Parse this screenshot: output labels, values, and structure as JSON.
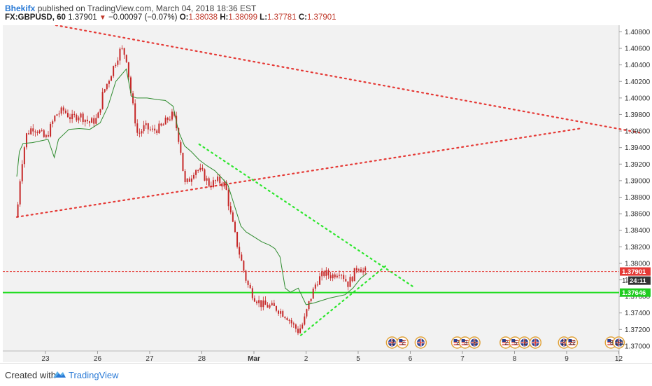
{
  "header": {
    "author": "Bhekifx",
    "published_text": " published on TradingView.com, March 04, 2018 18:36 EST",
    "symbol": "FX:GBPUSD, 60",
    "last": "1.37901",
    "change_arrow": "▼",
    "change": "−0.00097 (−0.07%)",
    "o_label": "O:",
    "o_value": "1.38038",
    "h_label": "H:",
    "h_value": "1.38099",
    "l_label": "L:",
    "l_value": "1.37781",
    "c_label": "C:",
    "c_value": "1.37901"
  },
  "footer": {
    "created_with": "Created with",
    "brand": "TradingView"
  },
  "price_tags": {
    "last_price": "1.37901",
    "countdown": "24:11",
    "support_level": "1.37646",
    "hidden_level_label": "1."
  },
  "colors": {
    "background": "#f2f2f2",
    "candle": "#c62828",
    "moving_average": "#2e8b2e",
    "red_trendline": "#e53935",
    "green_trendline": "#2ee62e",
    "support_line": "#22dd22",
    "price_tag_red": "#e53935",
    "price_tag_dark": "#333333",
    "price_tag_green": "#1fcc1f"
  },
  "chart_data": {
    "type": "candlestick",
    "symbol": "FX:GBPUSD",
    "interval": "60",
    "x_ticks": [
      "23",
      "26",
      "27",
      "28",
      "Mar",
      "2",
      "5",
      "6",
      "7",
      "8",
      "9",
      "12"
    ],
    "y_ticks": [
      "1.40800",
      "1.40600",
      "1.40400",
      "1.40200",
      "1.40000",
      "1.39800",
      "1.39600",
      "1.39400",
      "1.39200",
      "1.39000",
      "1.38800",
      "1.38600",
      "1.38400",
      "1.38200",
      "1.38000",
      "1.37800",
      "1.37600",
      "1.37400",
      "1.37200",
      "1.37000"
    ],
    "ylim": [
      1.3694,
      1.4088
    ],
    "xlim_trading_days": [
      0,
      12.2
    ],
    "close_path": [
      [
        0.0,
        1.3856
      ],
      [
        0.08,
        1.3915
      ],
      [
        0.18,
        1.3955
      ],
      [
        0.3,
        1.3965
      ],
      [
        0.42,
        1.396
      ],
      [
        0.55,
        1.395
      ],
      [
        0.65,
        1.3965
      ],
      [
        0.75,
        1.398
      ],
      [
        0.9,
        1.3985
      ],
      [
        1.05,
        1.3975
      ],
      [
        1.2,
        1.398
      ],
      [
        1.4,
        1.397
      ],
      [
        1.55,
        1.3975
      ],
      [
        1.65,
        1.4005
      ],
      [
        1.78,
        1.4025
      ],
      [
        1.9,
        1.4045
      ],
      [
        2.0,
        1.406
      ],
      [
        2.1,
        1.405
      ],
      [
        2.2,
        1.4
      ],
      [
        2.32,
        1.3955
      ],
      [
        2.45,
        1.3965
      ],
      [
        2.6,
        1.396
      ],
      [
        2.78,
        1.3965
      ],
      [
        2.9,
        1.3975
      ],
      [
        3.0,
        1.398
      ],
      [
        3.08,
        1.396
      ],
      [
        3.15,
        1.3935
      ],
      [
        3.22,
        1.3895
      ],
      [
        3.3,
        1.39
      ],
      [
        3.42,
        1.3915
      ],
      [
        3.55,
        1.391
      ],
      [
        3.7,
        1.3895
      ],
      [
        3.85,
        1.39
      ],
      [
        4.0,
        1.3895
      ],
      [
        4.1,
        1.386
      ],
      [
        4.2,
        1.383
      ],
      [
        4.3,
        1.3805
      ],
      [
        4.42,
        1.3775
      ],
      [
        4.55,
        1.376
      ],
      [
        4.7,
        1.375
      ],
      [
        4.85,
        1.3748
      ],
      [
        5.0,
        1.3745
      ],
      [
        5.1,
        1.374
      ],
      [
        5.2,
        1.3735
      ],
      [
        5.3,
        1.3725
      ],
      [
        5.4,
        1.3718
      ],
      [
        5.5,
        1.3728
      ],
      [
        5.62,
        1.3755
      ],
      [
        5.75,
        1.3778
      ],
      [
        5.9,
        1.3788
      ],
      [
        6.05,
        1.3785
      ],
      [
        6.2,
        1.3792
      ],
      [
        6.35,
        1.3775
      ],
      [
        6.45,
        1.3785
      ],
      [
        6.55,
        1.3798
      ],
      [
        6.65,
        1.379
      ],
      [
        6.72,
        1.379
      ]
    ],
    "moving_average": [
      [
        0.0,
        1.3905
      ],
      [
        0.05,
        1.3935
      ],
      [
        0.12,
        1.3945
      ],
      [
        0.3,
        1.3946
      ],
      [
        0.45,
        1.3948
      ],
      [
        0.6,
        1.395
      ],
      [
        0.72,
        1.3928
      ],
      [
        0.8,
        1.395
      ],
      [
        1.0,
        1.3962
      ],
      [
        1.2,
        1.3963
      ],
      [
        1.4,
        1.3962
      ],
      [
        1.6,
        1.397
      ],
      [
        1.75,
        1.399
      ],
      [
        1.9,
        1.402
      ],
      [
        2.1,
        1.4035
      ],
      [
        2.2,
        1.4002
      ],
      [
        2.3,
        1.4
      ],
      [
        2.5,
        1.4
      ],
      [
        2.7,
        1.3998
      ],
      [
        2.85,
        1.3997
      ],
      [
        3.0,
        1.399
      ],
      [
        3.1,
        1.396
      ],
      [
        3.22,
        1.3942
      ],
      [
        3.35,
        1.3935
      ],
      [
        3.5,
        1.3925
      ],
      [
        3.65,
        1.3918
      ],
      [
        3.8,
        1.3912
      ],
      [
        3.95,
        1.3902
      ],
      [
        4.05,
        1.3895
      ],
      [
        4.15,
        1.3875
      ],
      [
        4.3,
        1.3845
      ],
      [
        4.4,
        1.3838
      ],
      [
        4.55,
        1.3832
      ],
      [
        4.7,
        1.3826
      ],
      [
        4.85,
        1.3822
      ],
      [
        4.95,
        1.3818
      ],
      [
        5.05,
        1.3808
      ],
      [
        5.15,
        1.377
      ],
      [
        5.25,
        1.3765
      ],
      [
        5.4,
        1.377
      ],
      [
        5.55,
        1.375
      ],
      [
        5.7,
        1.3752
      ],
      [
        5.85,
        1.3755
      ],
      [
        6.0,
        1.3758
      ],
      [
        6.15,
        1.376
      ],
      [
        6.3,
        1.3762
      ],
      [
        6.45,
        1.377
      ],
      [
        6.6,
        1.3782
      ],
      [
        6.72,
        1.3788
      ]
    ],
    "trendlines": [
      {
        "color": "red",
        "style": "dotted",
        "from": [
          0.75,
          1.4088
        ],
        "to": [
          11.95,
          1.3958
        ]
      },
      {
        "color": "red",
        "style": "dotted",
        "from": [
          0.0,
          1.3856
        ],
        "to": [
          10.8,
          1.3963
        ]
      },
      {
        "color": "green",
        "style": "dotted",
        "from": [
          3.5,
          1.3944
        ],
        "to": [
          7.6,
          1.3772
        ]
      },
      {
        "color": "green",
        "style": "dotted",
        "from": [
          5.45,
          1.3713
        ],
        "to": [
          7.1,
          1.3798
        ]
      }
    ],
    "horizontal_lines": [
      {
        "value": 1.37646,
        "color": "green",
        "style": "solid"
      },
      {
        "value": 1.37901,
        "color": "red",
        "style": "dashed"
      }
    ],
    "event_markers": [
      {
        "x": 7.2,
        "kind": "uk",
        "text": "2"
      },
      {
        "x": 7.4,
        "kind": "us",
        "text": "2"
      },
      {
        "x": 7.75,
        "kind": "uk",
        "text": ""
      },
      {
        "x": 8.45,
        "kind": "us",
        "text": "2"
      },
      {
        "x": 8.6,
        "kind": "us",
        "text": "3"
      },
      {
        "x": 8.78,
        "kind": "uk",
        "text": "8"
      },
      {
        "x": 9.38,
        "kind": "us",
        "text": "2"
      },
      {
        "x": 9.56,
        "kind": "us",
        "text": "5"
      },
      {
        "x": 9.74,
        "kind": "uk",
        "text": "2"
      },
      {
        "x": 9.95,
        "kind": "uk",
        "text": ""
      },
      {
        "x": 10.5,
        "kind": "uk",
        "text": "27"
      },
      {
        "x": 10.65,
        "kind": "us",
        "text": "22"
      },
      {
        "x": 11.4,
        "kind": "us",
        "text": "8"
      },
      {
        "x": 11.55,
        "kind": "uk",
        "text": "191"
      }
    ]
  }
}
